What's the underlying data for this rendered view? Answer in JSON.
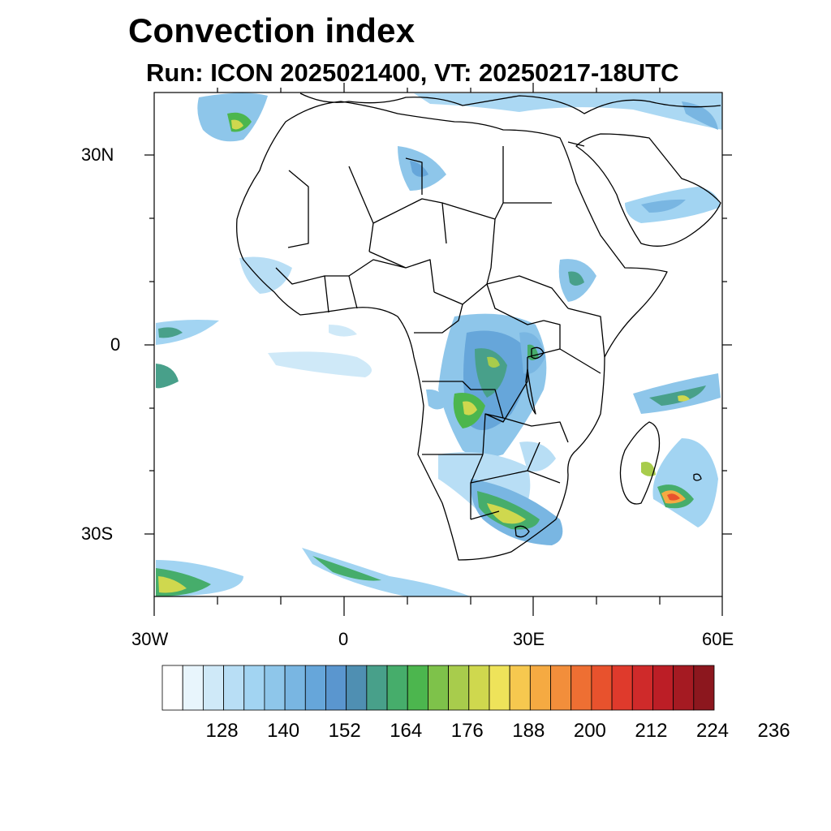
{
  "title": "Convection index",
  "subtitle": "Run: ICON 2025021400,  VT: 20250217-18UTC",
  "axes": {
    "lat_labels": [
      "30N",
      "0",
      "30S"
    ],
    "lon_labels": [
      "30W",
      "0",
      "30E",
      "60E"
    ],
    "lat_range": [
      -40,
      40
    ],
    "lon_range": [
      -30,
      60
    ]
  },
  "colorbar": {
    "tick_labels": [
      "128",
      "140",
      "152",
      "164",
      "176",
      "188",
      "200",
      "212",
      "224",
      "236"
    ],
    "colors": [
      "#ffffff",
      "#e8f5fc",
      "#cfe9f8",
      "#b8def5",
      "#a2d4f2",
      "#8ec6ea",
      "#79b6e2",
      "#66a6da",
      "#5a96cf",
      "#4f8fb2",
      "#48a08a",
      "#46ad6b",
      "#4cb64e",
      "#7ec24a",
      "#a8cc4c",
      "#cfd84e",
      "#eee35a",
      "#f6c84f",
      "#f5aa42",
      "#f28e3b",
      "#ee6f33",
      "#e8522d",
      "#df3a2c",
      "#cf2a2a",
      "#bc1e26",
      "#a51a22",
      "#8c171e"
    ]
  },
  "colors": {
    "land_outline": "#000000",
    "ocean": "#ffffff"
  }
}
